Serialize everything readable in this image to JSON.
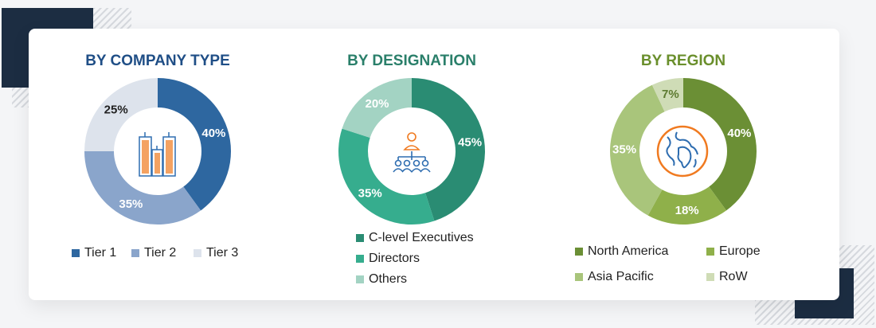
{
  "chart_data": [
    {
      "type": "pie",
      "title": "BY COMPANY TYPE",
      "title_color": "#1f4e86",
      "icon": "buildings-icon",
      "categories": [
        "Tier 1",
        "Tier 2",
        "Tier 3"
      ],
      "values": [
        40,
        35,
        25
      ],
      "labels": [
        "40%",
        "35%",
        "25%"
      ],
      "colors": [
        "#2e67a0",
        "#8aa5cb",
        "#dde3ec"
      ],
      "label_colors": [
        "#ffffff",
        "#ffffff",
        "#222222"
      ],
      "legend": "bottom"
    },
    {
      "type": "pie",
      "title": "BY DESIGNATION",
      "title_color": "#2a7f6a",
      "icon": "organization-hierarchy-icon",
      "categories": [
        "C-level Executives",
        "Directors",
        "Others"
      ],
      "values": [
        45,
        35,
        20
      ],
      "labels": [
        "45%",
        "35%",
        "20%"
      ],
      "colors": [
        "#2a8c73",
        "#36ad8e",
        "#a3d3c3"
      ],
      "label_colors": [
        "#ffffff",
        "#ffffff",
        "#ffffff"
      ],
      "legend": "bottom"
    },
    {
      "type": "pie",
      "title": "BY REGION",
      "title_color": "#6a8f2c",
      "icon": "globe-icon",
      "categories": [
        "North America",
        "Europe",
        "Asia Pacific",
        "RoW"
      ],
      "values": [
        40,
        18,
        35,
        7
      ],
      "labels": [
        "40%",
        "18%",
        "35%",
        "7%"
      ],
      "colors": [
        "#6b8f35",
        "#8fb04a",
        "#a9c57b",
        "#cfdcb6"
      ],
      "label_colors": [
        "#ffffff",
        "#ffffff",
        "#ffffff",
        "#5d7a30"
      ],
      "legend": "bottom"
    }
  ]
}
